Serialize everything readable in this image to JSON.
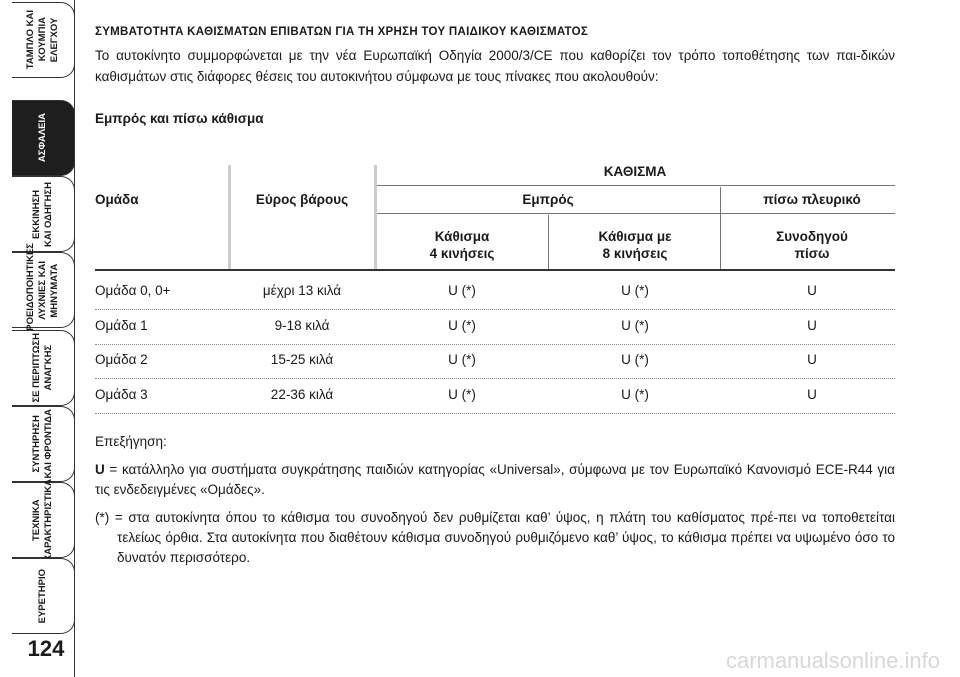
{
  "sidebar": {
    "tabs": [
      {
        "lines": [
          "ΤΑΜΠΛΟ ΚΑΙ",
          "ΚΟΥΜΠΙΑ",
          "ΕΛΕΓΧΟΥ"
        ]
      },
      {
        "lines": [
          "ΑΣΦΑΛΕΙΑ"
        ]
      },
      {
        "lines": [
          "ΕΚΚΙΝΗΣΗ",
          "ΚΑΙ ΟΔΗΓΗΣΗ"
        ]
      },
      {
        "lines": [
          "ΠΡΟΕΙΔΟΠΟΙΗΤΙΚΕΣ",
          "ΛΥΧΝΙΕΣ ΚΑΙ",
          "ΜΗΝΥΜΑΤΑ"
        ]
      },
      {
        "lines": [
          "ΣΕ ΠΕΡΙΠΤΩΣΗ",
          "ΑΝΑΓΚΗΣ"
        ]
      },
      {
        "lines": [
          "ΣΥΝΤΗΡΗΣΗ",
          "ΚΑΙ ΦΡΟΝΤΙΔΑ"
        ]
      },
      {
        "lines": [
          "ΤΕΧΝΙΚΑ",
          "ΧΑΡΑΚΤΗΡΙΣΤΙΚΑ"
        ]
      },
      {
        "lines": [
          "ΕΥΡΕΤΗΡΙΟ"
        ]
      }
    ],
    "page_number": "124"
  },
  "title": "ΣΥΜΒΑΤΟΤΗΤΑ ΚΑΘΙΣΜΑΤΩΝ ΕΠΙΒΑΤΩΝ ΓΙΑ ΤΗ ΧΡΗΣΗ ΤΟΥ ΠΑΙΔΙΚΟΥ ΚΑΘΙΣΜΑΤΟΣ",
  "intro": "Το αυτοκίνητο συμμορφώνεται με την νέα Ευρωπαϊκή Οδηγία 2000/3/CE που καθορίζει τον τρόπο τοποθέτησης των παι-δικών καθισμάτων στις διάφορες θέσεις του αυτοκινήτου σύμφωνα με τους πίνακες που ακολουθούν:",
  "section_heading": "Εμπρός και πίσω κάθισμα",
  "table": {
    "header": {
      "group": "Ομάδα",
      "weight": "Εύρος βάρους",
      "seat": "ΚΑΘΙΣΜΑ",
      "front": "Εμπρός",
      "rear_side": "πίσω πλευρικό",
      "front_4": [
        "Κάθισμα",
        "4 κινήσεις"
      ],
      "front_8": [
        "Κάθισμα με",
        "8 κινήσεις"
      ],
      "rear_passenger": [
        "Συνοδηγού",
        "πίσω"
      ]
    },
    "rows": [
      [
        "Ομάδα 0, 0+",
        "μέχρι 13 κιλά",
        "U (*)",
        "U (*)",
        "U"
      ],
      [
        "Ομάδα 1",
        "9-18 κιλά",
        "U (*)",
        "U (*)",
        "U"
      ],
      [
        "Ομάδα 2",
        "15-25 κιλά",
        "U (*)",
        "U (*)",
        "U"
      ],
      [
        "Ομάδα 3",
        "22-36 κιλά",
        "U (*)",
        "U (*)",
        "U"
      ]
    ]
  },
  "legend": {
    "heading": "Επεξήγηση:",
    "items": [
      {
        "key": "U",
        "text": "= κατάλληλο για συστήματα συγκράτησης παιδιών κατηγορίας «Universal», σύμφωνα με τον Ευρωπαϊκό Κανονισμό ECE-R44 για τις ενδεδειγμένες «Ομάδες»."
      },
      {
        "key": "(*)",
        "text": "= στα αυτοκίνητα όπου το κάθισμα του συνοδηγού δεν ρυθμίζεται καθ’ ύψος, η πλάτη του καθίσματος πρέ-πει να τοποθετείται τελείως όρθια. Στα αυτοκίνητα που διαθέτουν κάθισμα συνοδηγού ρυθμιζόμενο καθ’ ύψος, το κάθισμα πρέπει να υψωμένο όσο το δυνατόν περισσότερο."
      }
    ]
  },
  "watermark": "carmanualsonline.info"
}
